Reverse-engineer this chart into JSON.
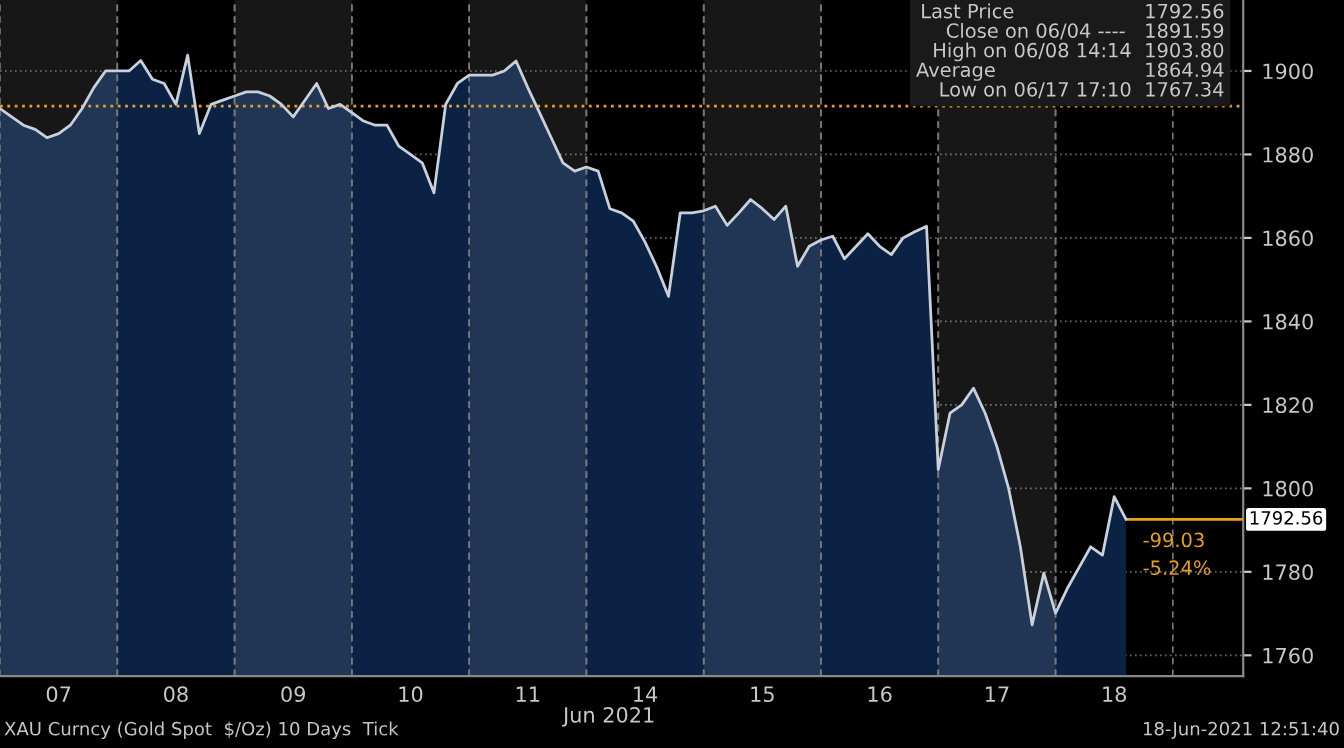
{
  "chart_data": {
    "type": "area",
    "xlabel": "Jun 2021",
    "categories": [
      null,
      null,
      null,
      null,
      null,
      "07",
      null,
      null,
      null,
      null,
      null,
      null,
      null,
      null,
      null,
      "08",
      null,
      null,
      null,
      null,
      null,
      null,
      null,
      null,
      null,
      "09",
      null,
      null,
      null,
      null,
      null,
      null,
      null,
      null,
      null,
      "10",
      null,
      null,
      null,
      null,
      null,
      null,
      null,
      null,
      null,
      "11",
      null,
      null,
      null,
      null,
      null,
      null,
      null,
      null,
      null,
      "14",
      null,
      null,
      null,
      null,
      null,
      null,
      null,
      null,
      null,
      "15",
      null,
      null,
      null,
      null,
      null,
      null,
      null,
      null,
      null,
      "16",
      null,
      null,
      null,
      null,
      null,
      null,
      null,
      null,
      null,
      "17",
      null,
      null,
      null,
      null,
      null,
      null,
      null,
      null,
      null,
      "18",
      null,
      null,
      null,
      null,
      null,
      null,
      null,
      null,
      null,
      null,
      null
    ],
    "series": [
      {
        "color": "#c8d0dc",
        "values": [
          1891,
          1889,
          1887,
          1886,
          1884,
          1885,
          1887,
          1891,
          1896,
          1900,
          1900,
          1900,
          1902.5,
          1898,
          1897,
          1892,
          1903.8,
          1885,
          1892,
          1893,
          1894,
          1895,
          1895,
          1894,
          1892,
          1889,
          1893,
          1897,
          1891,
          1892,
          1890,
          1888,
          1887,
          1887,
          1882,
          1880,
          1878,
          1870.8,
          1892,
          1897,
          1899,
          1899,
          1899,
          1900,
          1902.4,
          1896,
          1890,
          1884,
          1878,
          1876,
          1877,
          1876,
          1867,
          1866,
          1864,
          1859,
          1853,
          1846,
          1866,
          1866,
          1866.5,
          1867.6,
          1863,
          1866,
          1869.2,
          1867,
          1864.4,
          1867.6,
          1853.2,
          1858,
          1859.5,
          1860.4,
          1855,
          1858,
          1861,
          1858,
          1856,
          1860,
          1861.5,
          1862.8,
          1804.5,
          1818,
          1820,
          1824,
          1818,
          1810,
          1800,
          1786,
          1767.3,
          1779.7,
          1770.1,
          1776,
          1781,
          1786,
          1784,
          1798,
          1792.6,
          null,
          null,
          null,
          null,
          null,
          null,
          null,
          null,
          null,
          null
        ]
      }
    ],
    "ylim": [
      1755,
      1917
    ],
    "yticks": [
      1760,
      1780,
      1800,
      1820,
      1840,
      1860,
      1880,
      1900
    ],
    "grid": "y",
    "ref_lines": [
      {
        "axis": "y",
        "value": 1891.59,
        "color": "#e8a020",
        "line_style": "dotted"
      },
      {
        "axis": "y",
        "value": 1792.56,
        "color": "#e8a020",
        "line_style": "solid",
        "label": "1792.56"
      }
    ],
    "annotations": [
      "Last Price                     1792.56",
      "Close on 06/04 ----   1891.59",
      "High on 06/08 14:14  1903.80",
      "Average                        1864.94",
      "Low on 06/17 17:10  1767.34",
      "-99.03",
      "-5.24%",
      "XAU Curncy (Gold Spot  $/Oz) 10 Days  Tick",
      "18-Jun-2021 12:51:40"
    ]
  }
}
